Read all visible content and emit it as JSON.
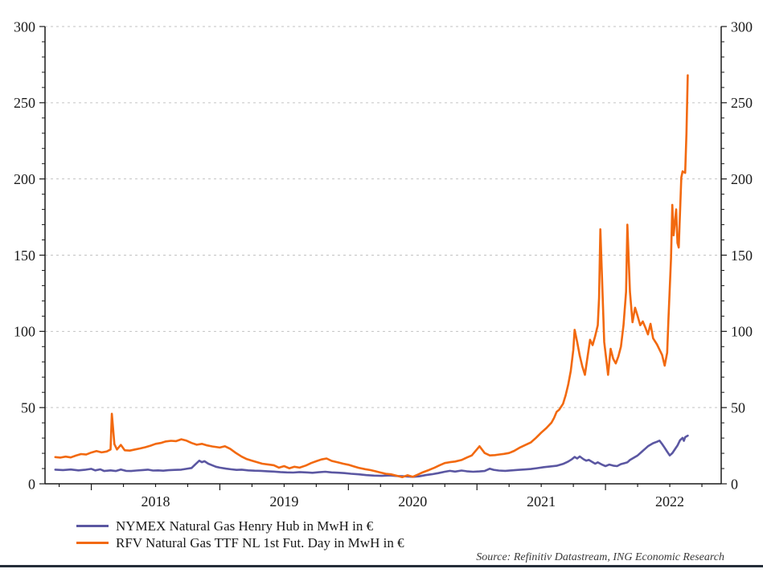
{
  "page": {
    "background": "#ffffff",
    "bottom_bar_color": "#252e39"
  },
  "chart_data": {
    "type": "line",
    "title": "",
    "xlabel": "",
    "ylabel": "",
    "grid": "horizontal-dashed",
    "grid_color": "#c3c3c3",
    "axis_color": "#1a1a1a",
    "legend_position": "bottom-left",
    "source_note": "Source: Refinitiv Datastream, ING Economic Research",
    "x_axis": {
      "range": [
        2017.64,
        2022.9
      ],
      "minor_tick_interval": 0.25,
      "major_ticks": [
        2018,
        2019,
        2020,
        2021,
        2022
      ],
      "year_labels": [
        "2018",
        "2019",
        "2020",
        "2021",
        "2022"
      ]
    },
    "y_axis": {
      "range": [
        0,
        300
      ],
      "major_ticks": [
        0,
        50,
        100,
        150,
        200,
        250,
        300
      ],
      "minor_tick_interval": 10,
      "labels_both_sides": true
    },
    "series": [
      {
        "name": "NYMEX Natural Gas Henry Hub in MwH in €",
        "color": "#5B57A2",
        "points": [
          [
            2017.72,
            9.3
          ],
          [
            2017.78,
            9.0
          ],
          [
            2017.84,
            9.4
          ],
          [
            2017.9,
            8.8
          ],
          [
            2017.95,
            9.2
          ],
          [
            2018.0,
            9.8
          ],
          [
            2018.03,
            8.8
          ],
          [
            2018.07,
            9.5
          ],
          [
            2018.1,
            8.4
          ],
          [
            2018.15,
            8.8
          ],
          [
            2018.19,
            8.4
          ],
          [
            2018.23,
            9.4
          ],
          [
            2018.27,
            8.5
          ],
          [
            2018.31,
            8.4
          ],
          [
            2018.35,
            8.7
          ],
          [
            2018.4,
            9.0
          ],
          [
            2018.44,
            9.3
          ],
          [
            2018.48,
            8.7
          ],
          [
            2018.52,
            8.8
          ],
          [
            2018.56,
            8.6
          ],
          [
            2018.6,
            8.9
          ],
          [
            2018.65,
            9.1
          ],
          [
            2018.7,
            9.3
          ],
          [
            2018.74,
            9.8
          ],
          [
            2018.78,
            10.4
          ],
          [
            2018.81,
            12.8
          ],
          [
            2018.84,
            15.2
          ],
          [
            2018.86,
            14.2
          ],
          [
            2018.88,
            14.8
          ],
          [
            2018.91,
            13.2
          ],
          [
            2018.94,
            12.2
          ],
          [
            2018.97,
            11.2
          ],
          [
            2019.0,
            10.6
          ],
          [
            2019.05,
            9.9
          ],
          [
            2019.09,
            9.5
          ],
          [
            2019.13,
            9.1
          ],
          [
            2019.17,
            9.3
          ],
          [
            2019.22,
            8.8
          ],
          [
            2019.27,
            8.6
          ],
          [
            2019.32,
            8.5
          ],
          [
            2019.37,
            8.2
          ],
          [
            2019.42,
            8.0
          ],
          [
            2019.47,
            7.7
          ],
          [
            2019.52,
            7.5
          ],
          [
            2019.57,
            7.4
          ],
          [
            2019.62,
            7.7
          ],
          [
            2019.67,
            7.5
          ],
          [
            2019.72,
            7.2
          ],
          [
            2019.77,
            7.6
          ],
          [
            2019.82,
            7.9
          ],
          [
            2019.87,
            7.5
          ],
          [
            2019.92,
            7.3
          ],
          [
            2019.97,
            7.0
          ],
          [
            2020.02,
            6.6
          ],
          [
            2020.08,
            6.2
          ],
          [
            2020.14,
            5.7
          ],
          [
            2020.2,
            5.4
          ],
          [
            2020.26,
            5.2
          ],
          [
            2020.32,
            5.5
          ],
          [
            2020.38,
            5.1
          ],
          [
            2020.44,
            4.9
          ],
          [
            2020.5,
            4.6
          ],
          [
            2020.55,
            4.9
          ],
          [
            2020.6,
            5.7
          ],
          [
            2020.65,
            6.3
          ],
          [
            2020.7,
            7.0
          ],
          [
            2020.75,
            7.9
          ],
          [
            2020.79,
            8.5
          ],
          [
            2020.83,
            8.0
          ],
          [
            2020.88,
            8.7
          ],
          [
            2020.92,
            8.2
          ],
          [
            2020.97,
            7.9
          ],
          [
            2021.02,
            8.1
          ],
          [
            2021.06,
            8.4
          ],
          [
            2021.1,
            9.9
          ],
          [
            2021.13,
            9.2
          ],
          [
            2021.17,
            8.7
          ],
          [
            2021.22,
            8.5
          ],
          [
            2021.27,
            8.8
          ],
          [
            2021.32,
            9.1
          ],
          [
            2021.37,
            9.4
          ],
          [
            2021.42,
            9.7
          ],
          [
            2021.47,
            10.3
          ],
          [
            2021.52,
            10.9
          ],
          [
            2021.57,
            11.4
          ],
          [
            2021.62,
            11.8
          ],
          [
            2021.67,
            13.0
          ],
          [
            2021.71,
            14.6
          ],
          [
            2021.74,
            16.2
          ],
          [
            2021.76,
            17.6
          ],
          [
            2021.78,
            16.6
          ],
          [
            2021.8,
            17.9
          ],
          [
            2021.83,
            16.1
          ],
          [
            2021.85,
            15.2
          ],
          [
            2021.87,
            15.7
          ],
          [
            2021.9,
            14.2
          ],
          [
            2021.92,
            13.2
          ],
          [
            2021.94,
            14.1
          ],
          [
            2021.97,
            12.7
          ],
          [
            2022.0,
            11.6
          ],
          [
            2022.03,
            12.6
          ],
          [
            2022.06,
            11.9
          ],
          [
            2022.09,
            11.6
          ],
          [
            2022.12,
            12.9
          ],
          [
            2022.15,
            13.6
          ],
          [
            2022.17,
            14.1
          ],
          [
            2022.19,
            15.6
          ],
          [
            2022.21,
            16.6
          ],
          [
            2022.23,
            17.6
          ],
          [
            2022.25,
            18.6
          ],
          [
            2022.27,
            20.1
          ],
          [
            2022.29,
            21.6
          ],
          [
            2022.31,
            23.1
          ],
          [
            2022.33,
            24.6
          ],
          [
            2022.35,
            25.6
          ],
          [
            2022.37,
            26.6
          ],
          [
            2022.4,
            27.6
          ],
          [
            2022.42,
            28.3
          ],
          [
            2022.44,
            26.1
          ],
          [
            2022.46,
            23.6
          ],
          [
            2022.48,
            21.1
          ],
          [
            2022.5,
            18.6
          ],
          [
            2022.52,
            20.1
          ],
          [
            2022.54,
            22.6
          ],
          [
            2022.56,
            25.1
          ],
          [
            2022.58,
            28.6
          ],
          [
            2022.6,
            30.1
          ],
          [
            2022.61,
            28.2
          ],
          [
            2022.62,
            30.6
          ],
          [
            2022.64,
            31.6
          ]
        ]
      },
      {
        "name": "RFV Natural Gas TTF NL 1st Fut. Day in MwH in €",
        "color": "#F2690F",
        "points": [
          [
            2017.72,
            17.5
          ],
          [
            2017.76,
            17.2
          ],
          [
            2017.8,
            17.8
          ],
          [
            2017.84,
            17.3
          ],
          [
            2017.88,
            18.5
          ],
          [
            2017.92,
            19.5
          ],
          [
            2017.96,
            19.2
          ],
          [
            2018.0,
            20.5
          ],
          [
            2018.04,
            21.5
          ],
          [
            2018.08,
            20.6
          ],
          [
            2018.12,
            21.2
          ],
          [
            2018.15,
            22.5
          ],
          [
            2018.16,
            46.0
          ],
          [
            2018.18,
            26.0
          ],
          [
            2018.2,
            22.5
          ],
          [
            2018.23,
            25.5
          ],
          [
            2018.26,
            22.0
          ],
          [
            2018.3,
            21.8
          ],
          [
            2018.34,
            22.5
          ],
          [
            2018.38,
            23.2
          ],
          [
            2018.42,
            24.0
          ],
          [
            2018.46,
            25.0
          ],
          [
            2018.5,
            26.2
          ],
          [
            2018.54,
            26.8
          ],
          [
            2018.58,
            27.8
          ],
          [
            2018.62,
            28.2
          ],
          [
            2018.66,
            28.0
          ],
          [
            2018.7,
            29.2
          ],
          [
            2018.74,
            28.3
          ],
          [
            2018.78,
            26.8
          ],
          [
            2018.82,
            25.6
          ],
          [
            2018.86,
            26.2
          ],
          [
            2018.9,
            25.2
          ],
          [
            2018.94,
            24.5
          ],
          [
            2019.0,
            23.8
          ],
          [
            2019.04,
            24.6
          ],
          [
            2019.08,
            23.0
          ],
          [
            2019.12,
            20.5
          ],
          [
            2019.17,
            17.8
          ],
          [
            2019.21,
            16.2
          ],
          [
            2019.25,
            15.2
          ],
          [
            2019.29,
            14.2
          ],
          [
            2019.33,
            13.2
          ],
          [
            2019.38,
            12.6
          ],
          [
            2019.42,
            12.2
          ],
          [
            2019.46,
            10.6
          ],
          [
            2019.5,
            11.6
          ],
          [
            2019.54,
            10.2
          ],
          [
            2019.58,
            11.2
          ],
          [
            2019.62,
            10.6
          ],
          [
            2019.67,
            12.0
          ],
          [
            2019.71,
            13.6
          ],
          [
            2019.75,
            14.8
          ],
          [
            2019.79,
            16.0
          ],
          [
            2019.83,
            16.6
          ],
          [
            2019.87,
            15.0
          ],
          [
            2019.92,
            14.0
          ],
          [
            2019.96,
            13.2
          ],
          [
            2020.0,
            12.5
          ],
          [
            2020.04,
            11.5
          ],
          [
            2020.08,
            10.5
          ],
          [
            2020.13,
            9.6
          ],
          [
            2020.17,
            9.0
          ],
          [
            2020.21,
            8.2
          ],
          [
            2020.25,
            7.4
          ],
          [
            2020.29,
            6.6
          ],
          [
            2020.33,
            6.2
          ],
          [
            2020.38,
            5.2
          ],
          [
            2020.42,
            4.4
          ],
          [
            2020.46,
            5.6
          ],
          [
            2020.5,
            4.6
          ],
          [
            2020.54,
            6.0
          ],
          [
            2020.58,
            7.6
          ],
          [
            2020.63,
            9.2
          ],
          [
            2020.67,
            10.6
          ],
          [
            2020.71,
            12.2
          ],
          [
            2020.75,
            13.6
          ],
          [
            2020.79,
            14.2
          ],
          [
            2020.83,
            14.6
          ],
          [
            2020.88,
            15.6
          ],
          [
            2020.92,
            17.2
          ],
          [
            2020.96,
            18.6
          ],
          [
            2021.02,
            24.6
          ],
          [
            2021.06,
            20.2
          ],
          [
            2021.1,
            18.6
          ],
          [
            2021.14,
            18.8
          ],
          [
            2021.17,
            19.2
          ],
          [
            2021.21,
            19.6
          ],
          [
            2021.25,
            20.2
          ],
          [
            2021.29,
            21.6
          ],
          [
            2021.33,
            23.6
          ],
          [
            2021.37,
            25.2
          ],
          [
            2021.42,
            27.2
          ],
          [
            2021.46,
            30.2
          ],
          [
            2021.5,
            33.6
          ],
          [
            2021.54,
            36.6
          ],
          [
            2021.58,
            40.2
          ],
          [
            2021.6,
            43.2
          ],
          [
            2021.62,
            47.2
          ],
          [
            2021.64,
            48.6
          ],
          [
            2021.67,
            52.5
          ],
          [
            2021.69,
            58.0
          ],
          [
            2021.71,
            65.0
          ],
          [
            2021.73,
            74.0
          ],
          [
            2021.75,
            88.0
          ],
          [
            2021.76,
            101.0
          ],
          [
            2021.78,
            93.0
          ],
          [
            2021.8,
            84.0
          ],
          [
            2021.82,
            77.0
          ],
          [
            2021.84,
            71.5
          ],
          [
            2021.86,
            83.0
          ],
          [
            2021.88,
            94.5
          ],
          [
            2021.9,
            91.0
          ],
          [
            2021.92,
            97.0
          ],
          [
            2021.94,
            104.0
          ],
          [
            2021.95,
            122.0
          ],
          [
            2021.96,
            167.0
          ],
          [
            2021.98,
            118.0
          ],
          [
            2021.99,
            93.0
          ],
          [
            2022.01,
            79.0
          ],
          [
            2022.02,
            71.5
          ],
          [
            2022.04,
            88.5
          ],
          [
            2022.06,
            82.0
          ],
          [
            2022.08,
            79.0
          ],
          [
            2022.1,
            83.5
          ],
          [
            2022.12,
            90.0
          ],
          [
            2022.14,
            104.0
          ],
          [
            2022.16,
            126.0
          ],
          [
            2022.17,
            170.0
          ],
          [
            2022.19,
            126.0
          ],
          [
            2022.21,
            106.0
          ],
          [
            2022.23,
            115.5
          ],
          [
            2022.25,
            110.0
          ],
          [
            2022.27,
            104.0
          ],
          [
            2022.29,
            106.5
          ],
          [
            2022.31,
            102.5
          ],
          [
            2022.33,
            98.0
          ],
          [
            2022.35,
            105.0
          ],
          [
            2022.37,
            95.5
          ],
          [
            2022.4,
            91.5
          ],
          [
            2022.42,
            88.0
          ],
          [
            2022.44,
            84.5
          ],
          [
            2022.46,
            77.5
          ],
          [
            2022.48,
            86.0
          ],
          [
            2022.49,
            108.0
          ],
          [
            2022.51,
            148.0
          ],
          [
            2022.52,
            183.0
          ],
          [
            2022.53,
            163.0
          ],
          [
            2022.55,
            180.0
          ],
          [
            2022.56,
            158.0
          ],
          [
            2022.57,
            155.0
          ],
          [
            2022.59,
            201.0
          ],
          [
            2022.6,
            205.0
          ],
          [
            2022.62,
            204.0
          ],
          [
            2022.63,
            230.0
          ],
          [
            2022.64,
            268.0
          ]
        ]
      }
    ]
  }
}
